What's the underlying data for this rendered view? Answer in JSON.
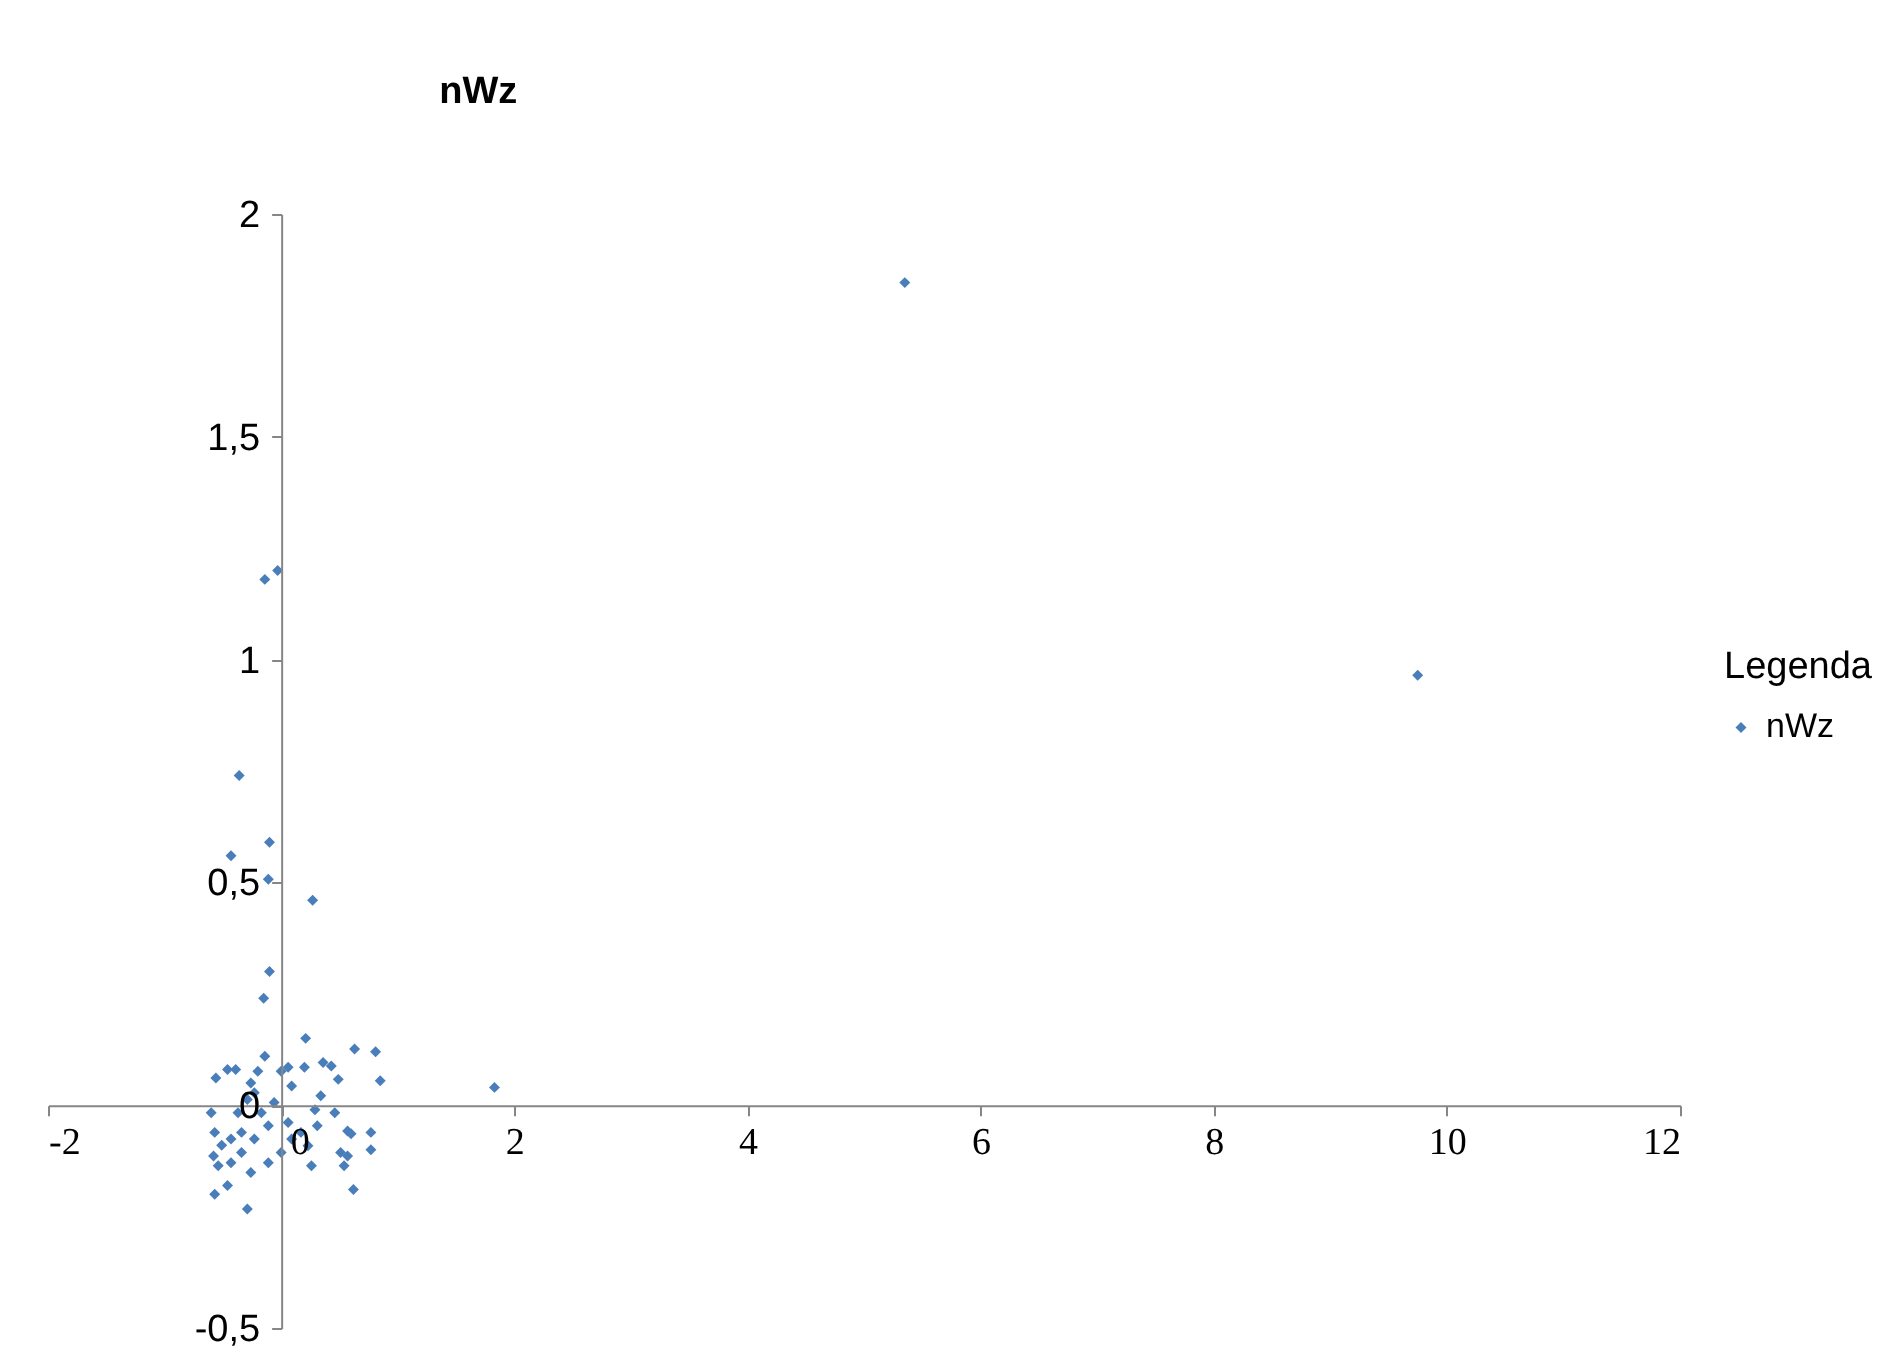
{
  "chart_data": {
    "type": "scatter",
    "ylabel": "nWz",
    "legend_title": "Legenda",
    "legend": "right",
    "marker": "diamond",
    "grid": false,
    "xlim": [
      -2,
      12
    ],
    "xticks": [
      -2,
      0,
      2,
      4,
      6,
      8,
      10,
      12
    ],
    "ylim": [
      -0.5,
      2
    ],
    "yticks": [
      {
        "value": -0.5,
        "label": "-0,5"
      },
      0,
      {
        "value": 0.5,
        "label": "0,5"
      },
      1,
      {
        "value": 1.5,
        "label": "1,5"
      },
      2
    ],
    "series": [
      {
        "name": "nWz",
        "color": "#4a7ebb",
        "x": [
          5.35,
          9.75,
          -0.03,
          -0.14,
          -0.36,
          -0.43,
          -0.1,
          -0.11,
          0.27,
          -0.1,
          -0.15,
          0.21,
          -0.14,
          0.63,
          0.81,
          0.85,
          0.36,
          0.43,
          0.49,
          0.2,
          0.06,
          0,
          0.09,
          0.34,
          0.29,
          1.83,
          -0.56,
          -0.46,
          -0.39,
          -0.2,
          -0.26,
          -0.6,
          -0.57,
          -0.58,
          -0.51,
          -0.43,
          -0.46,
          -0.57,
          -0.29,
          -0.26,
          -0.11,
          -0.34,
          -0.23,
          -0.11,
          -0.17,
          -0.29,
          -0.37,
          -0.23,
          -0.06,
          0.06,
          0.17,
          0.09,
          0,
          0.23,
          0.26,
          0.31,
          0.46,
          0.57,
          0.6,
          0.51,
          0.57,
          0.54,
          0.62,
          0.77,
          0.77,
          -0.54,
          -0.34,
          -0.43
        ],
        "values": [
          1.846,
          0.965,
          1.2,
          1.18,
          0.74,
          0.56,
          0.59,
          0.507,
          0.46,
          0.3,
          0.24,
          0.15,
          0.11,
          0.126,
          0.12,
          0.055,
          0.096,
          0.088,
          0.058,
          0.085,
          0.085,
          0.076,
          0.043,
          0.021,
          -0.01,
          0.04,
          0.061,
          0.08,
          0.08,
          0.076,
          0.05,
          -0.017,
          -0.061,
          -0.114,
          -0.09,
          -0.129,
          -0.18,
          -0.2,
          -0.233,
          -0.151,
          -0.129,
          -0.106,
          -0.076,
          -0.046,
          -0.017,
          0.013,
          -0.017,
          0.028,
          0.006,
          -0.039,
          -0.061,
          -0.076,
          -0.106,
          -0.091,
          -0.136,
          -0.046,
          -0.017,
          -0.058,
          -0.064,
          -0.106,
          -0.114,
          -0.136,
          -0.189,
          -0.061,
          -0.1,
          -0.136,
          -0.061,
          -0.076
        ]
      }
    ]
  }
}
